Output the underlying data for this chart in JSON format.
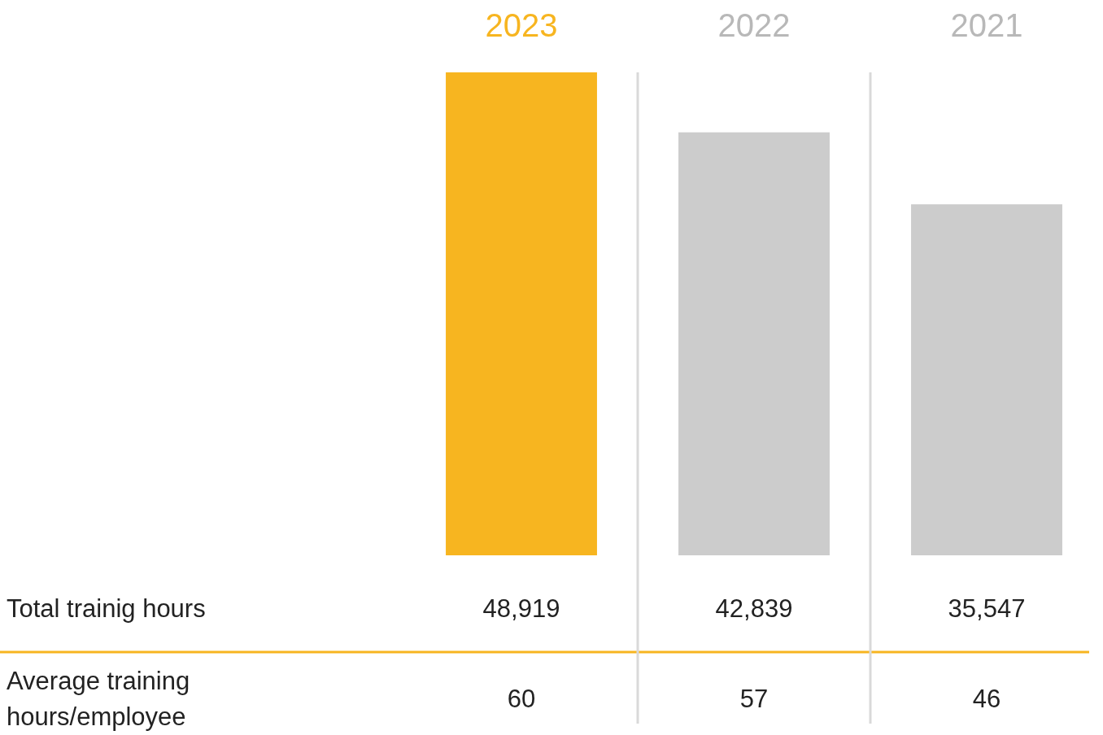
{
  "chart_data": {
    "type": "bar",
    "categories": [
      "2023",
      "2022",
      "2021"
    ],
    "series": [
      {
        "name": "Total trainig hours",
        "colors": [
          "#f7b520",
          "#cccccc",
          "#cccccc"
        ],
        "values": [
          48919,
          42839,
          35547
        ],
        "value_labels": [
          "48,919",
          "42,839",
          "35,547"
        ]
      }
    ],
    "annotations": [
      "Average training hours/employee",
      "60",
      "57",
      "46"
    ]
  }
}
